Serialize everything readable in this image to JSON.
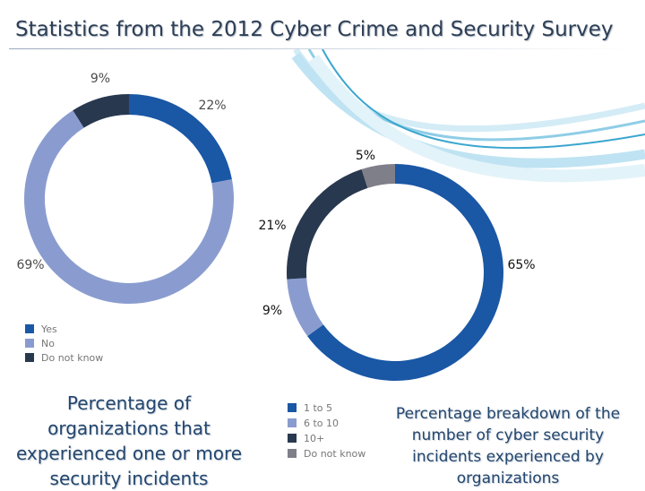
{
  "slide": {
    "title": "Statistics from the 2012 Cyber Crime and Security Survey",
    "colors": {
      "background": "#ffffff",
      "title": "#2d3e55",
      "caption": "#23466e",
      "swoosh": "#3aa6cf"
    }
  },
  "chart_data": [
    {
      "type": "pie",
      "subtype": "donut",
      "title": "Percentage of organizations that experienced one or more security incidents",
      "categories": [
        "Yes",
        "No",
        "Do not know"
      ],
      "values": [
        22,
        69,
        9
      ],
      "labels": [
        "22%",
        "69%",
        "9%"
      ],
      "colors": [
        "#1a57a5",
        "#8a9ccf",
        "#28384f"
      ],
      "legend": "bottom-left"
    },
    {
      "type": "pie",
      "subtype": "donut",
      "title": "Percentage breakdown of the number of cyber security incidents experienced by organizations",
      "categories": [
        "1 to 5",
        "6 to 10",
        "10+",
        "Do not know"
      ],
      "values": [
        65,
        9,
        21,
        5
      ],
      "labels": [
        "65%",
        "9%",
        "21%",
        "5%"
      ],
      "colors": [
        "#1a57a5",
        "#8a9ccf",
        "#28384f",
        "#7f7f8a"
      ],
      "legend": "bottom-left"
    }
  ]
}
